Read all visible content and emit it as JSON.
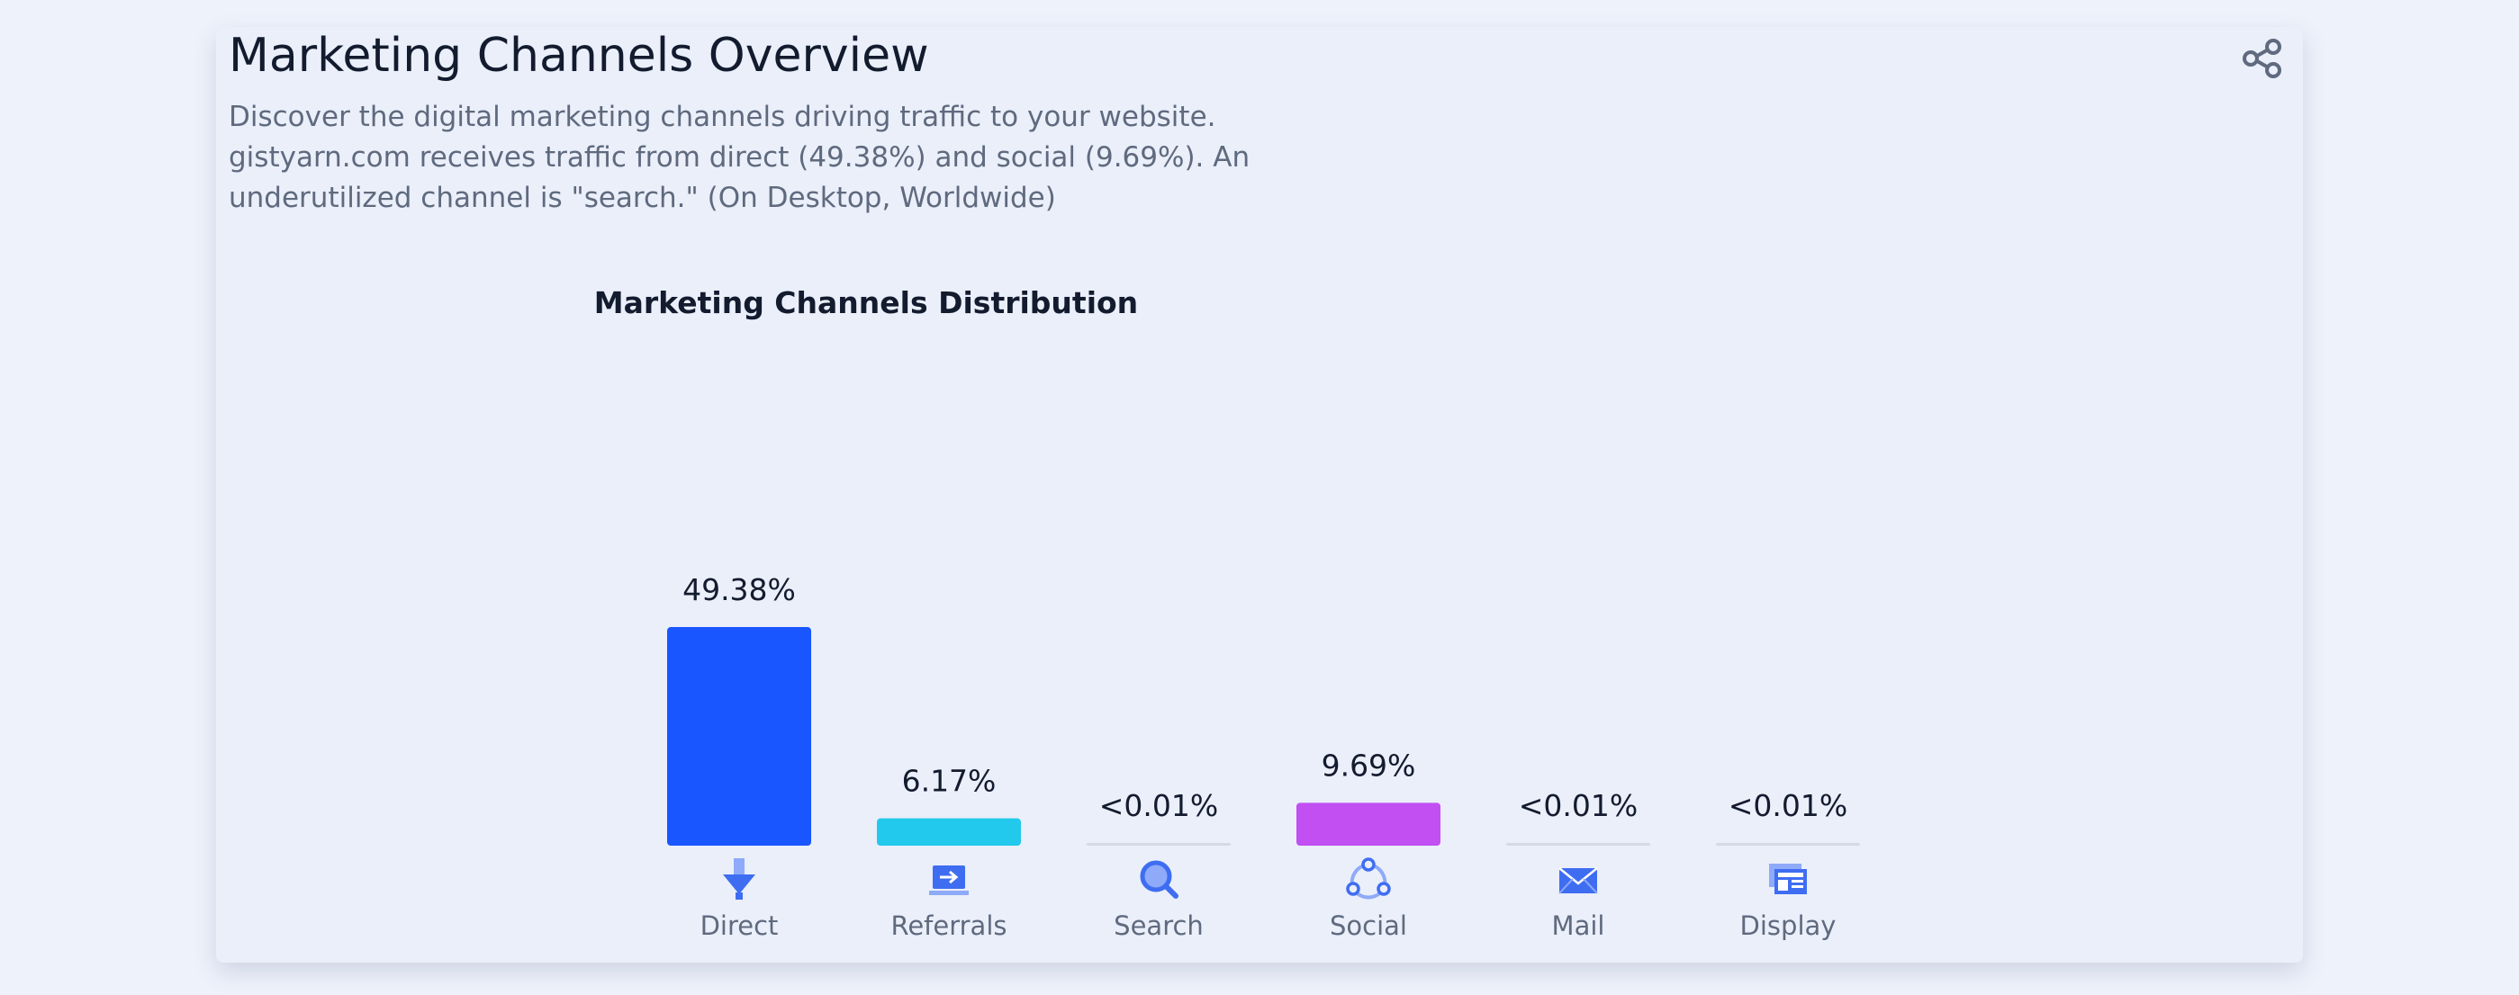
{
  "header": {
    "title": "Marketing Channels Overview",
    "description": "Discover the digital marketing channels driving traffic to your website. gistyarn.com receives traffic from direct (49.38%) and social (9.69%). An underutilized channel is \"search.\" (On Desktop, Worldwide)"
  },
  "icons": {
    "share": "share-icon"
  },
  "chart_data": {
    "type": "bar",
    "title": "Marketing Channels Distribution",
    "categories": [
      "Direct",
      "Referrals",
      "Search",
      "Social",
      "Mail",
      "Display"
    ],
    "values": [
      49.38,
      6.17,
      0.005,
      9.69,
      0.005,
      0.005
    ],
    "value_labels": [
      "49.38%",
      "6.17%",
      "<0.01%",
      "9.69%",
      "<0.01%",
      "<0.01%"
    ],
    "colors": [
      "#1a56ff",
      "#22c9ec",
      "#d3dae6",
      "#c14ff2",
      "#d3dae6",
      "#d3dae6"
    ],
    "icons": [
      "direct-icon",
      "referrals-icon",
      "search-icon",
      "social-icon",
      "mail-icon",
      "display-icon"
    ],
    "ylim": [
      0,
      100
    ],
    "grid": false,
    "legend": false
  }
}
